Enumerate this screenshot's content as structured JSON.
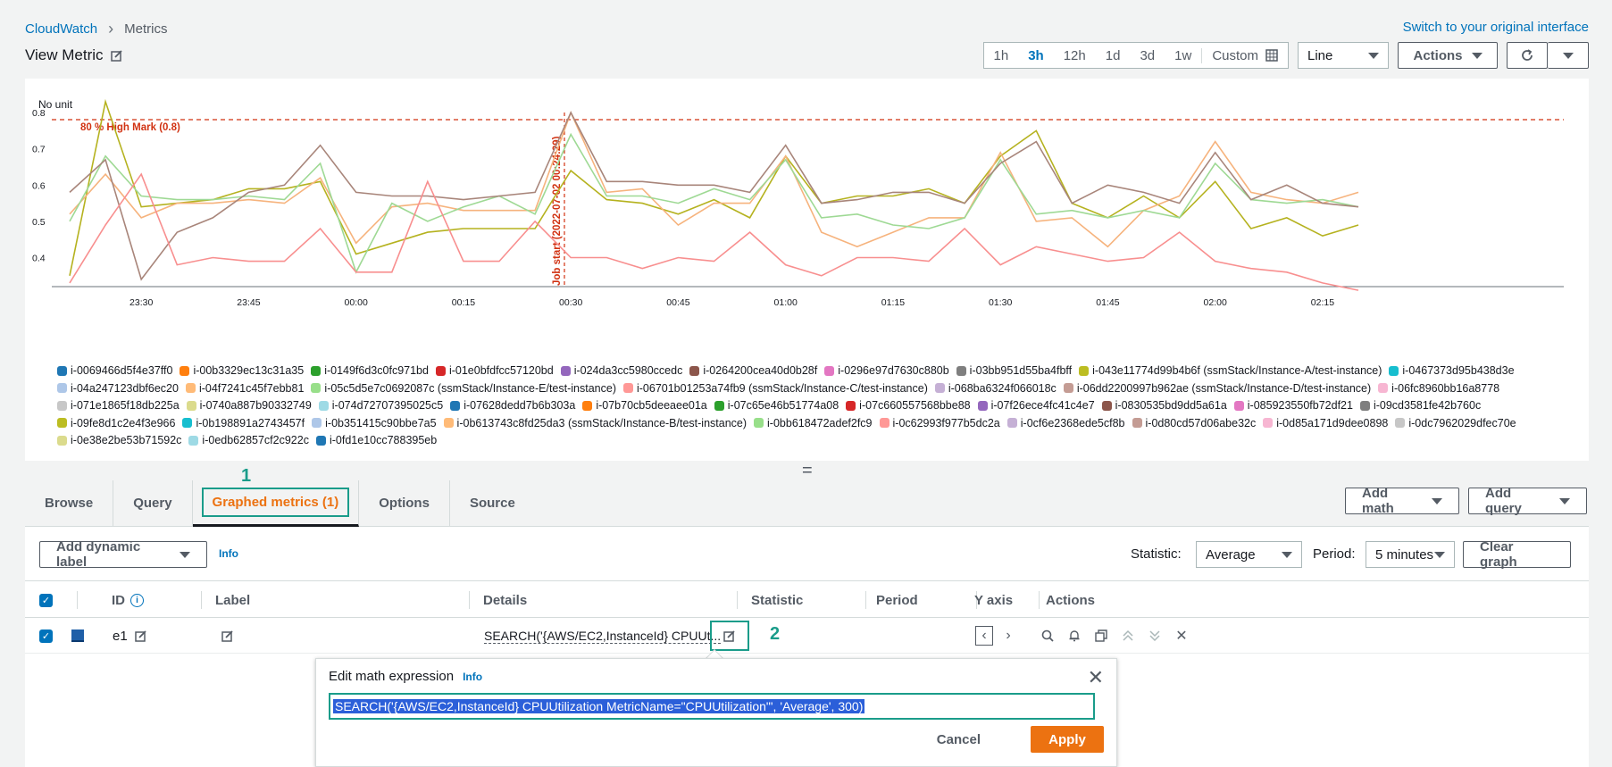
{
  "breadcrumb": {
    "root": "CloudWatch",
    "current": "Metrics"
  },
  "switch_link": "Switch to your original interface",
  "page_title": "View Metric",
  "time_ranges": [
    "1h",
    "3h",
    "12h",
    "1d",
    "3d",
    "1w"
  ],
  "time_active": "3h",
  "custom_label": "Custom",
  "chart_type_select": "Line",
  "actions_label": "Actions",
  "chart": {
    "unit_label": "No unit",
    "high_mark_label": "80 % High Mark (0.8)",
    "job_start_label": "Job start (2022-07-02 00:24:29)",
    "y_ticks": [
      "0.8",
      "0.7",
      "0.6",
      "0.5",
      "0.4"
    ],
    "x_ticks": [
      "23:30",
      "23:45",
      "00:00",
      "00:15",
      "00:30",
      "00:45",
      "01:00",
      "01:15",
      "01:30",
      "01:45",
      "02:00",
      "02:15"
    ]
  },
  "chart_data": {
    "type": "line",
    "ylim": [
      0.32,
      0.82
    ],
    "threshold": 0.8,
    "x": [
      "23:20",
      "23:25",
      "23:30",
      "23:35",
      "23:40",
      "23:45",
      "23:50",
      "23:55",
      "00:00",
      "00:05",
      "00:10",
      "00:15",
      "00:20",
      "00:25",
      "00:30",
      "00:35",
      "00:40",
      "00:45",
      "00:50",
      "00:55",
      "01:00",
      "01:05",
      "01:10",
      "01:15",
      "01:20",
      "01:25",
      "01:30",
      "01:35",
      "01:40",
      "01:45",
      "01:50",
      "01:55",
      "02:00",
      "02:05",
      "02:10",
      "02:15",
      "02:20"
    ],
    "series": [
      {
        "name": "i-043e11774d99b4b6f (ssmStack/Instance-A/test-instance)",
        "color": "#b5b21f",
        "values": [
          0.35,
          0.83,
          0.54,
          0.55,
          0.56,
          0.59,
          0.59,
          0.61,
          0.41,
          0.44,
          0.47,
          0.48,
          0.48,
          0.48,
          0.64,
          0.56,
          0.55,
          0.52,
          0.56,
          0.51,
          0.68,
          0.55,
          0.57,
          0.57,
          0.59,
          0.55,
          0.68,
          0.75,
          0.55,
          0.51,
          0.57,
          0.51,
          0.61,
          0.48,
          0.51,
          0.46,
          0.49
        ]
      },
      {
        "name": "i-0b613743c8fd25da3 (ssmStack/Instance-B/test-instance)",
        "color": "#f6b37d",
        "values": [
          0.52,
          0.63,
          0.51,
          0.55,
          0.55,
          0.56,
          0.55,
          0.62,
          0.44,
          0.54,
          0.55,
          0.53,
          0.53,
          0.53,
          0.8,
          0.58,
          0.59,
          0.49,
          0.55,
          0.55,
          0.68,
          0.47,
          0.43,
          0.47,
          0.51,
          0.51,
          0.69,
          0.5,
          0.51,
          0.43,
          0.53,
          0.57,
          0.72,
          0.58,
          0.56,
          0.55,
          0.58
        ]
      },
      {
        "name": "i-05c5d5e7c0692087c (ssmStack/Instance-E/test-instance)",
        "color": "#9ed994",
        "values": [
          0.5,
          0.68,
          0.57,
          0.56,
          0.56,
          0.57,
          0.56,
          0.66,
          0.36,
          0.55,
          0.5,
          0.54,
          0.57,
          0.52,
          0.74,
          0.57,
          0.57,
          0.55,
          0.59,
          0.56,
          0.67,
          0.51,
          0.52,
          0.49,
          0.48,
          0.51,
          0.67,
          0.52,
          0.53,
          0.51,
          0.53,
          0.51,
          0.66,
          0.56,
          0.55,
          0.56,
          0.54
        ]
      },
      {
        "name": "i-06dd2200997b962ae (ssmStack/Instance-D/test-instance)",
        "color": "#a8857a",
        "values": [
          0.58,
          0.67,
          0.34,
          0.47,
          0.51,
          0.58,
          0.6,
          0.71,
          0.58,
          0.57,
          0.57,
          0.56,
          0.57,
          0.58,
          0.8,
          0.61,
          0.61,
          0.6,
          0.6,
          0.58,
          0.71,
          0.55,
          0.56,
          0.58,
          0.58,
          0.55,
          0.66,
          0.72,
          0.55,
          0.6,
          0.58,
          0.55,
          0.69,
          0.56,
          0.6,
          0.55,
          0.54
        ]
      },
      {
        "name": "i-06701b01253a74fb9 (ssmStack/Instance-C/test-instance)",
        "color": "#f88f8f",
        "values": [
          0.33,
          0.49,
          0.63,
          0.38,
          0.4,
          0.39,
          0.39,
          0.48,
          0.36,
          0.36,
          0.61,
          0.39,
          0.39,
          0.5,
          0.4,
          0.4,
          0.37,
          0.4,
          0.39,
          0.47,
          0.38,
          0.35,
          0.4,
          0.4,
          0.39,
          0.48,
          0.38,
          0.43,
          0.41,
          0.39,
          0.4,
          0.47,
          0.39,
          0.37,
          0.36,
          0.33,
          0.31
        ]
      }
    ]
  },
  "legend": [
    {
      "label": "i-0069466d5f4e37ff0",
      "color": "#1f77b4"
    },
    {
      "label": "i-00b3329ec13c31a35",
      "color": "#ff7f0e"
    },
    {
      "label": "i-0149f6d3c0fc971bd",
      "color": "#2ca02c"
    },
    {
      "label": "i-01e0bfdfcc57120bd",
      "color": "#d62728"
    },
    {
      "label": "i-024da3cc5980ccedc",
      "color": "#9467bd"
    },
    {
      "label": "i-0264200cea40d0b28f",
      "color": "#8c564b"
    },
    {
      "label": "i-0296e97d7630c880b",
      "color": "#e377c2"
    },
    {
      "label": "i-03bb951d55ba4fbff",
      "color": "#7f7f7f"
    },
    {
      "label": "i-043e11774d99b4b6f (ssmStack/Instance-A/test-instance)",
      "color": "#bcbd22"
    },
    {
      "label": "i-0467373d95b438d3e",
      "color": "#17becf"
    },
    {
      "label": "i-04a247123dbf6ec20",
      "color": "#aec7e8"
    },
    {
      "label": "i-04f7241c45f7ebb81",
      "color": "#ffbb78"
    },
    {
      "label": "i-05c5d5e7c0692087c (ssmStack/Instance-E/test-instance)",
      "color": "#98df8a"
    },
    {
      "label": "i-06701b01253a74fb9 (ssmStack/Instance-C/test-instance)",
      "color": "#ff9896"
    },
    {
      "label": "i-068ba6324f066018c",
      "color": "#c5b0d5"
    },
    {
      "label": "i-06dd2200997b962ae (ssmStack/Instance-D/test-instance)",
      "color": "#c49c94"
    },
    {
      "label": "i-06fc8960bb16a8778",
      "color": "#f7b6d2"
    },
    {
      "label": "i-071e1865f18db225a",
      "color": "#c7c7c7"
    },
    {
      "label": "i-0740a887b90332749",
      "color": "#dbdb8d"
    },
    {
      "label": "i-074d72707395025c5",
      "color": "#9edae5"
    },
    {
      "label": "i-07628dedd7b6b303a",
      "color": "#1f77b4"
    },
    {
      "label": "i-07b70cb5deeaee01a",
      "color": "#ff7f0e"
    },
    {
      "label": "i-07c65e46b51774a08",
      "color": "#2ca02c"
    },
    {
      "label": "i-07c660557568bbe88",
      "color": "#d62728"
    },
    {
      "label": "i-07f26ece4fc41c4e7",
      "color": "#9467bd"
    },
    {
      "label": "i-0830535bd9dd5a61a",
      "color": "#8c564b"
    },
    {
      "label": "i-085923550fb72df21",
      "color": "#e377c2"
    },
    {
      "label": "i-09cd3581fe42b760c",
      "color": "#7f7f7f"
    },
    {
      "label": "i-09fe8d1c2e4f3e966",
      "color": "#bcbd22"
    },
    {
      "label": "i-0b198891a2743457f",
      "color": "#17becf"
    },
    {
      "label": "i-0b351415c90bbe7a5",
      "color": "#aec7e8"
    },
    {
      "label": "i-0b613743c8fd25da3 (ssmStack/Instance-B/test-instance)",
      "color": "#ffbb78"
    },
    {
      "label": "i-0bb618472adef2fc9",
      "color": "#98df8a"
    },
    {
      "label": "i-0c62993f977b5dc2a",
      "color": "#ff9896"
    },
    {
      "label": "i-0cf6e2368ede5cf8b",
      "color": "#c5b0d5"
    },
    {
      "label": "i-0d80cd57d06abe32c",
      "color": "#c49c94"
    },
    {
      "label": "i-0d85a171d9dee0898",
      "color": "#f7b6d2"
    },
    {
      "label": "i-0dc7962029dfec70e",
      "color": "#c7c7c7"
    },
    {
      "label": "i-0e38e2be53b71592c",
      "color": "#dbdb8d"
    },
    {
      "label": "i-0edb62857cf2c922c",
      "color": "#9edae5"
    },
    {
      "label": "i-0fd1e10cc788395eb",
      "color": "#1f77b4"
    }
  ],
  "step1_label": "1",
  "step2_label": "2",
  "tabs": [
    {
      "label": "Browse"
    },
    {
      "label": "Query"
    },
    {
      "label": "Graphed metrics (1)"
    },
    {
      "label": "Options"
    },
    {
      "label": "Source"
    }
  ],
  "add_math_label": "Add math",
  "add_query_label": "Add query",
  "add_dynamic_label": "Add dynamic label",
  "info_label": "Info",
  "statistic_label": "Statistic:",
  "statistic_value": "Average",
  "period_label": "Period:",
  "period_value": "5 minutes",
  "clear_graph_label": "Clear graph",
  "table": {
    "headers": {
      "id": "ID",
      "label": "Label",
      "details": "Details",
      "statistic": "Statistic",
      "period": "Period",
      "yaxis": "Y axis",
      "actions": "Actions"
    },
    "row": {
      "id": "e1",
      "details": "SEARCH('{AWS/EC2,InstanceId} CPUUt..."
    }
  },
  "popover": {
    "title": "Edit math expression",
    "info": "Info",
    "expression": "SEARCH('{AWS/EC2,InstanceId} CPUUtilization MetricName=\"CPUUtilization\"', 'Average', 300)",
    "cancel": "Cancel",
    "apply": "Apply"
  },
  "colors": {
    "accent": "#0073bb",
    "orange": "#ec7211",
    "highlight": "#1a9c8a",
    "threshold": "#d13212"
  }
}
